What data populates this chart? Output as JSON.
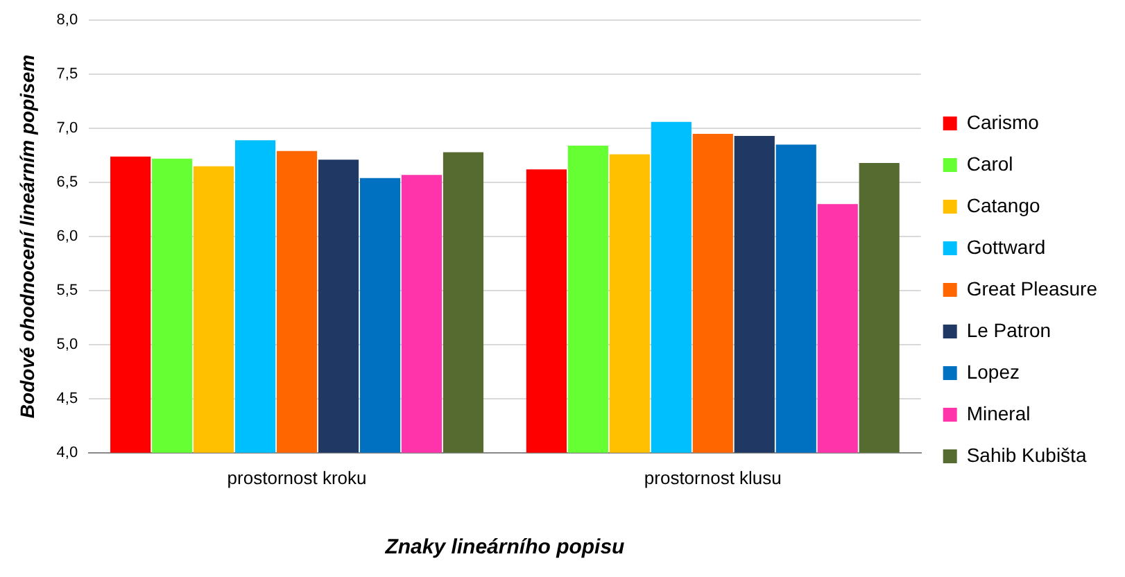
{
  "chart_data": {
    "type": "bar",
    "xlabel": "Znaky lineárního popisu",
    "ylabel": "Bodové ohodnocení lineárním popisem",
    "categories": [
      "prostornost kroku",
      "prostornost klusu"
    ],
    "series": [
      {
        "name": "Carismo",
        "color": "#ff0000",
        "values": [
          6.74,
          6.62
        ]
      },
      {
        "name": "Carol",
        "color": "#66ff33",
        "values": [
          6.72,
          6.84
        ]
      },
      {
        "name": "Catango",
        "color": "#ffc000",
        "values": [
          6.65,
          6.76
        ]
      },
      {
        "name": "Gottward",
        "color": "#00bfff",
        "values": [
          6.89,
          7.06
        ]
      },
      {
        "name": "Great Pleasure",
        "color": "#ff6600",
        "values": [
          6.79,
          6.95
        ]
      },
      {
        "name": "Le Patron",
        "color": "#1f3864",
        "values": [
          6.71,
          6.93
        ]
      },
      {
        "name": "Lopez",
        "color": "#0070c0",
        "values": [
          6.54,
          6.85
        ]
      },
      {
        "name": "Mineral",
        "color": "#ff33aa",
        "values": [
          6.57,
          6.3
        ]
      },
      {
        "name": "Sahib Kubišta",
        "color": "#556b2f",
        "values": [
          6.78,
          6.68
        ]
      }
    ],
    "ylim": [
      4,
      8
    ],
    "yticks": [
      {
        "value": 4,
        "label": "4,0"
      },
      {
        "value": 4.5,
        "label": "4,5"
      },
      {
        "value": 5,
        "label": "5,0"
      },
      {
        "value": 5.5,
        "label": "5,5"
      },
      {
        "value": 6,
        "label": "6,0"
      },
      {
        "value": 6.5,
        "label": "6,5"
      },
      {
        "value": 7,
        "label": "7,0"
      },
      {
        "value": 7.5,
        "label": "7,5"
      },
      {
        "value": 8,
        "label": "8,0"
      }
    ],
    "grid": "y",
    "legend": "right"
  }
}
